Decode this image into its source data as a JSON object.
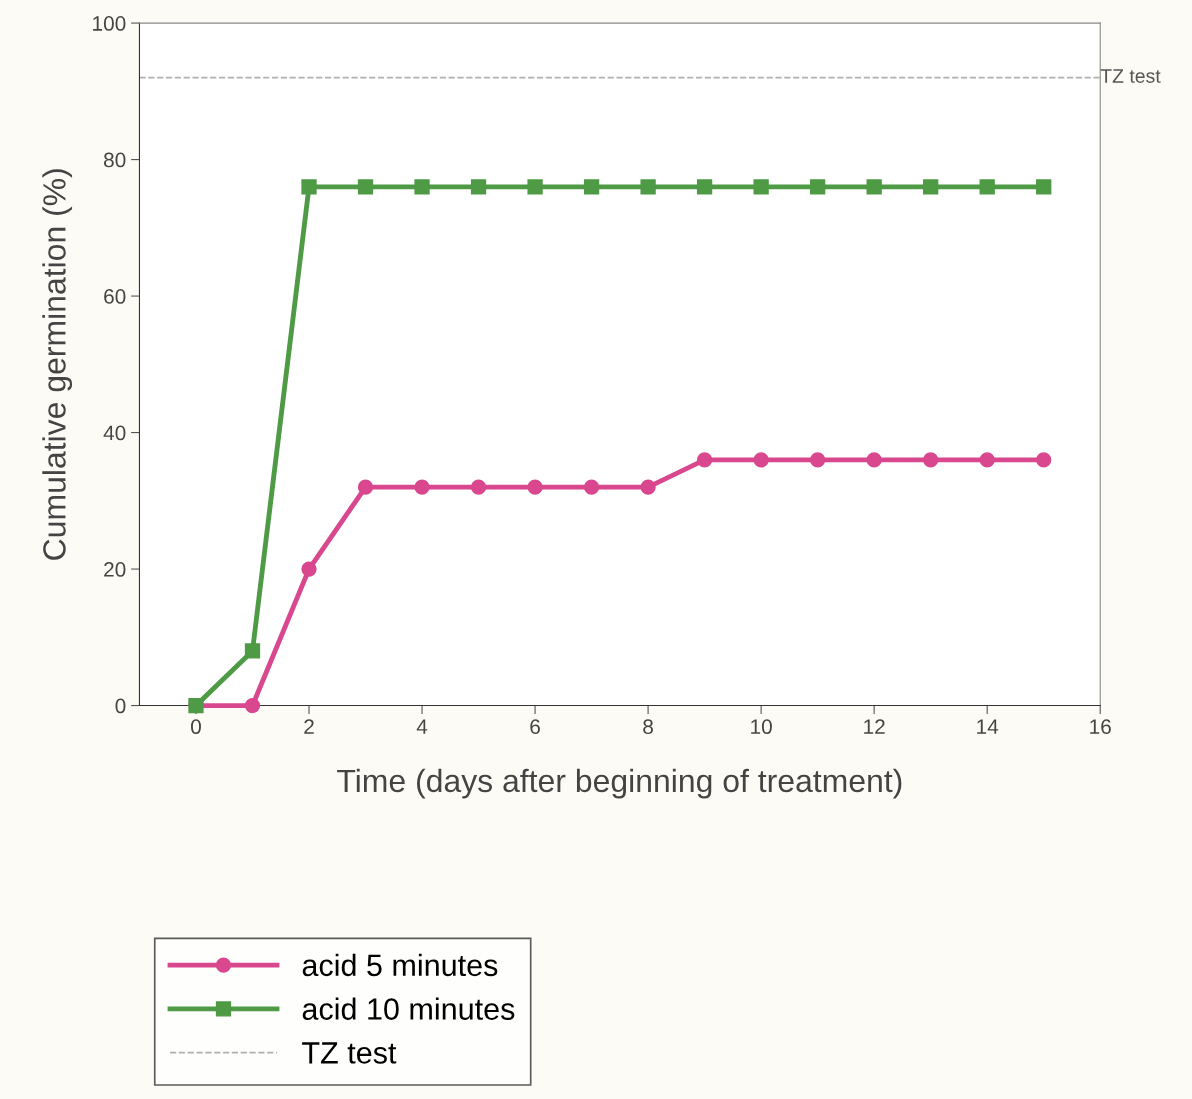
{
  "chart_data": {
    "type": "line",
    "xlabel": "Time (days after beginning of treatment)",
    "ylabel": "Cumulative germination (%)",
    "x": [
      0,
      1,
      2,
      3,
      4,
      5,
      6,
      7,
      8,
      9,
      10,
      11,
      12,
      13,
      14,
      15
    ],
    "series": [
      {
        "name": "acid 5 minutes",
        "color": "#d9478f",
        "marker": "circle",
        "values": [
          0,
          0,
          20,
          32,
          32,
          32,
          32,
          32,
          32,
          36,
          36,
          36,
          36,
          36,
          36,
          36
        ]
      },
      {
        "name": "acid 10 minutes",
        "color": "#4e9a45",
        "marker": "square",
        "values": [
          0,
          8,
          76,
          76,
          76,
          76,
          76,
          76,
          76,
          76,
          76,
          76,
          76,
          76,
          76,
          76
        ]
      }
    ],
    "xlim": [
      -1,
      16
    ],
    "xticks": [
      0,
      2,
      4,
      6,
      8,
      10,
      12,
      14,
      16
    ],
    "ylim": [
      0,
      100
    ],
    "yticks": [
      0,
      20,
      40,
      60,
      80,
      100
    ],
    "ref_lines": [
      {
        "axis": "y",
        "value": 92,
        "label": "TZ test",
        "color": "#b0b0b0",
        "line_style": "dashed"
      }
    ],
    "grid": false,
    "legend": "bottom left",
    "line_style": "solid"
  }
}
